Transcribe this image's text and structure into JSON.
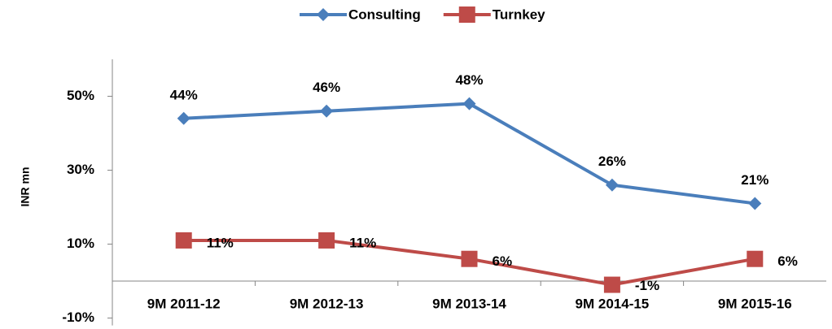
{
  "chart_data": {
    "type": "line",
    "y_label": "INR mn",
    "categories": [
      "9M 2011-12",
      "9M 2012-13",
      "9M 2013-14",
      "9M 2014-15",
      "9M 2015-16"
    ],
    "series": [
      {
        "name": "Consulting",
        "color": "#4a7ebb",
        "marker": "diamond",
        "values": [
          44,
          46,
          48,
          26,
          21
        ],
        "value_labels": [
          "44%",
          "46%",
          "48%",
          "26%",
          "21%"
        ]
      },
      {
        "name": "Turnkey",
        "color": "#be4b48",
        "marker": "square",
        "values": [
          11,
          11,
          6,
          -1,
          6
        ],
        "value_labels": [
          "11%",
          "11%",
          "6%",
          "-1%",
          "6%"
        ]
      }
    ],
    "ylim": [
      -12,
      60
    ],
    "yticks": [
      {
        "value": -10,
        "label": "-10%"
      },
      {
        "value": 10,
        "label": "10%"
      },
      {
        "value": 30,
        "label": "30%"
      },
      {
        "value": 50,
        "label": "50%"
      }
    ],
    "grid": false,
    "legend": "top"
  }
}
